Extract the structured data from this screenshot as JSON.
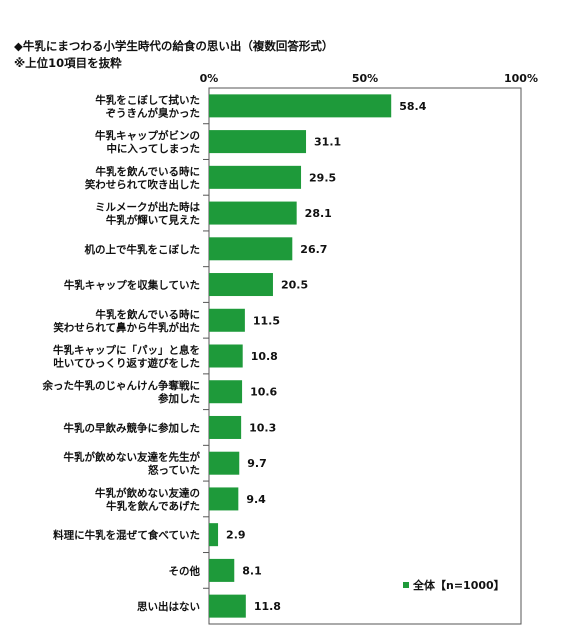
{
  "title": "◆牛乳にまつわる小学生時代の給食の思い出（複数回答形式）",
  "subtitle": "※上位10項目を抜粋",
  "chart_data": {
    "type": "bar",
    "orientation": "horizontal",
    "categories": [
      [
        "牛乳をこぼして拭いた",
        "ぞうきんが臭かった"
      ],
      [
        "牛乳キャップがビンの",
        "中に入ってしまった"
      ],
      [
        "牛乳を飲んでいる時に",
        "笑わせられて吹き出した"
      ],
      [
        "ミルメークが出た時は",
        "牛乳が輝いて見えた"
      ],
      [
        "机の上で牛乳をこぼした"
      ],
      [
        "牛乳キャップを収集していた"
      ],
      [
        "牛乳を飲んでいる時に",
        "笑わせられて鼻から牛乳が出た"
      ],
      [
        "牛乳キャップに「パッ」と息を",
        "吐いてひっくり返す遊びをした"
      ],
      [
        "余った牛乳のじゃんけん争奪戦に",
        "参加した"
      ],
      [
        "牛乳の早飲み競争に参加した"
      ],
      [
        "牛乳が飲めない友達を先生が",
        "怒っていた"
      ],
      [
        "牛乳が飲めない友達の",
        "牛乳を飲んであげた"
      ],
      [
        "料理に牛乳を混ぜて食べていた"
      ],
      [
        "その他"
      ],
      [
        "思い出はない"
      ]
    ],
    "series": [
      {
        "name": "全体【n=1000】",
        "values": [
          58.4,
          31.1,
          29.5,
          28.1,
          26.7,
          20.5,
          11.5,
          10.8,
          10.6,
          10.3,
          9.7,
          9.4,
          2.9,
          8.1,
          11.8
        ]
      }
    ],
    "value_labels": [
      "58.4",
      "31.1",
      "29.5",
      "28.1",
      "26.7",
      "20.5",
      "11.5",
      "10.8",
      "10.6",
      "10.3",
      "9.7",
      "9.4",
      "2.9",
      "8.1",
      "11.8"
    ],
    "xlim": [
      0,
      100
    ],
    "x_ticks": [
      "0%",
      "50%",
      "100%"
    ],
    "bar_color": "#1e9a3a",
    "grid": false,
    "legend_position": "bottom-right"
  }
}
